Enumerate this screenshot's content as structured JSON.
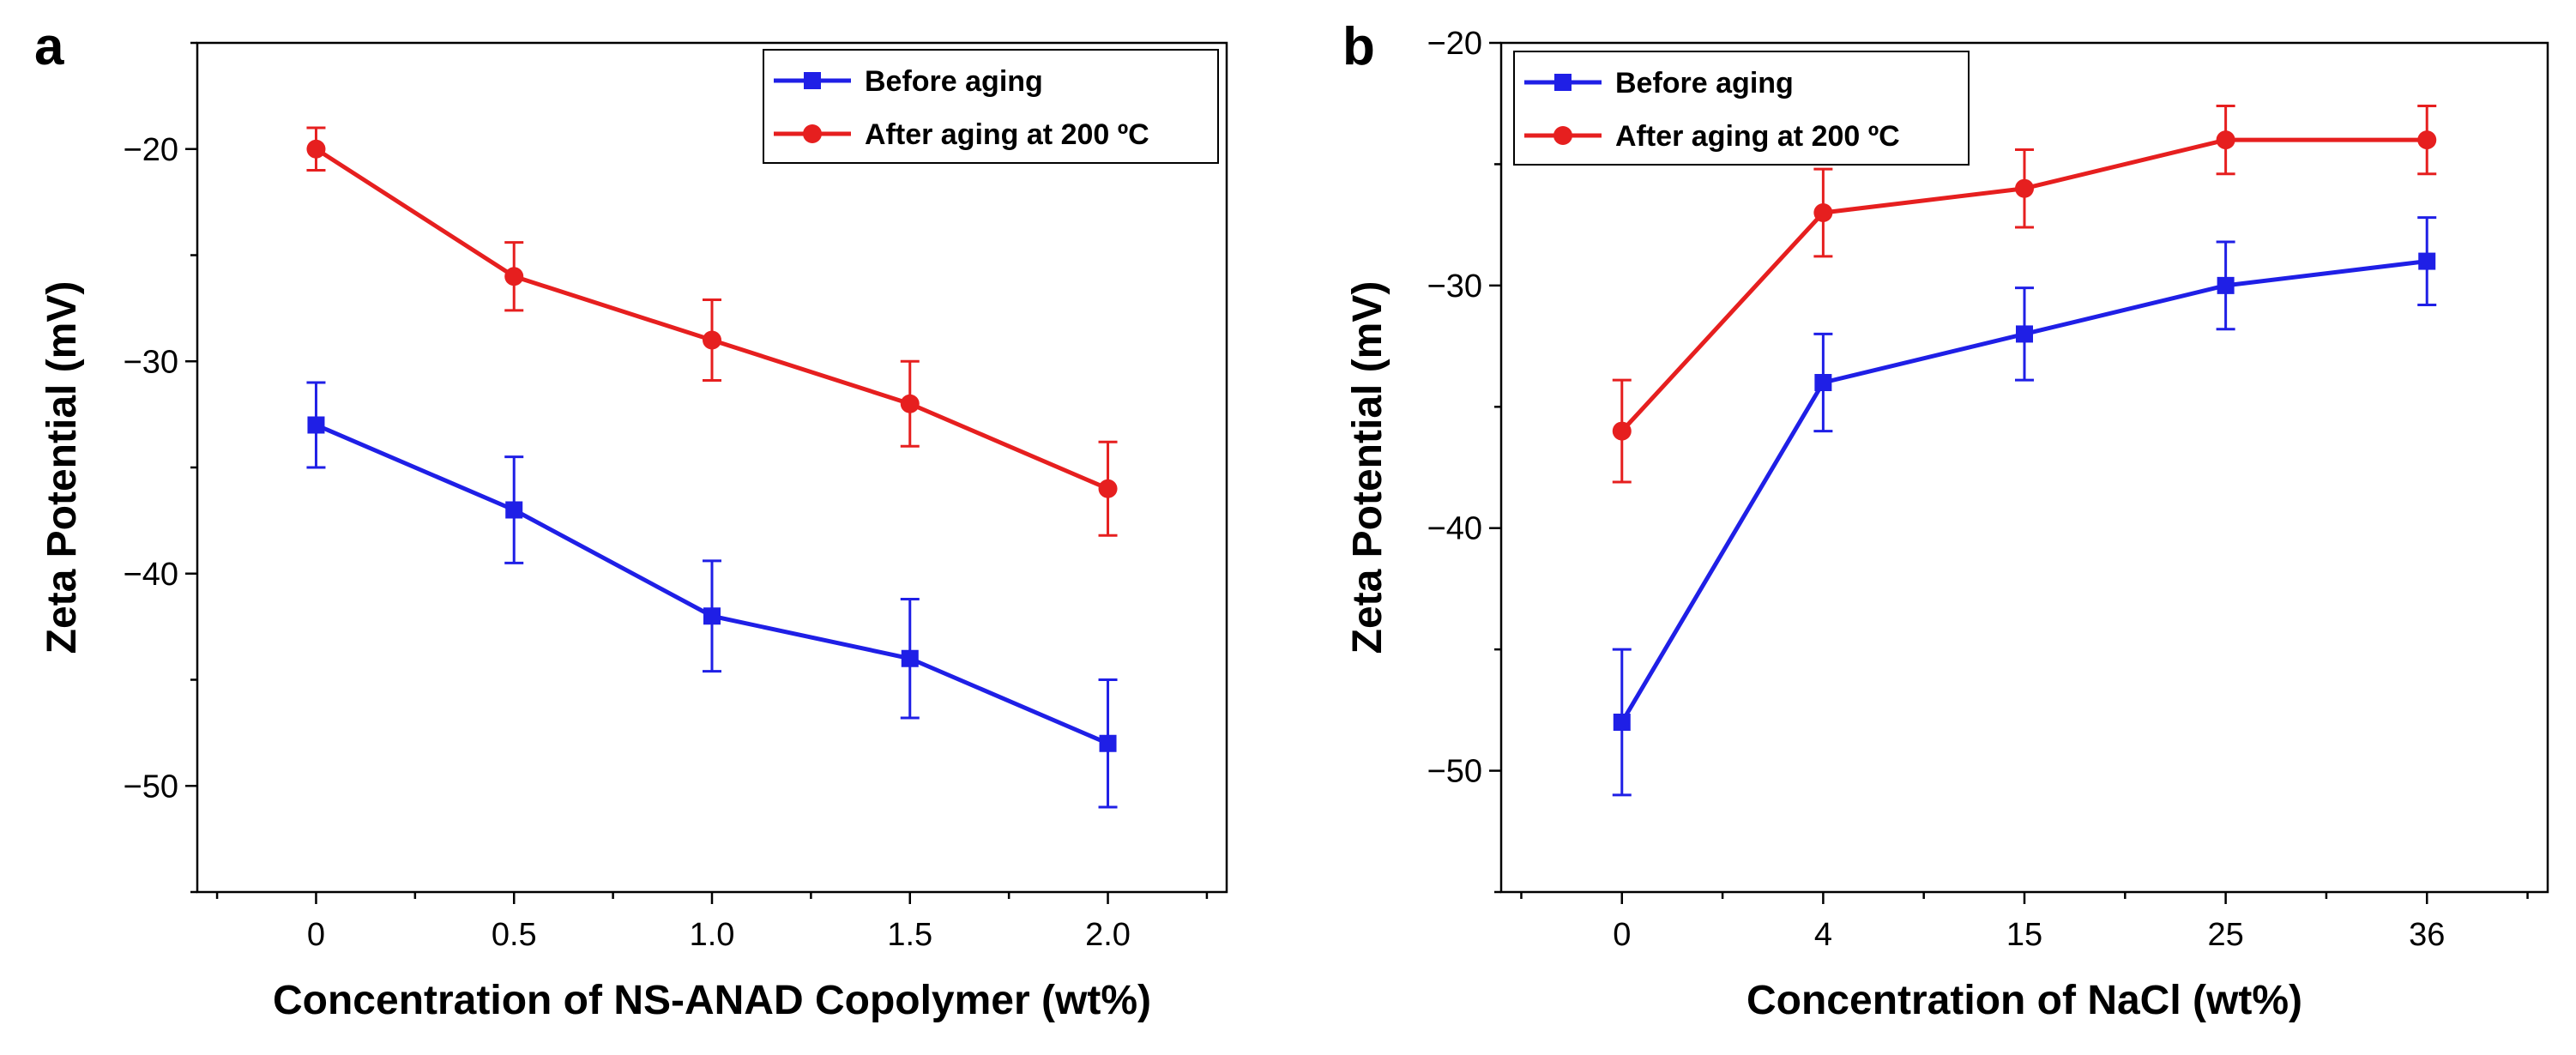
{
  "chart_data": [
    {
      "type": "line",
      "panel_label": "a",
      "xlabel": "Concentration of NS-ANAD Copolymer (wt%)",
      "ylabel": "Zeta Potential (mV)",
      "categories": [
        "0",
        "0.5",
        "1.0",
        "1.5",
        "2.0"
      ],
      "x": [
        0,
        0.5,
        1.0,
        1.5,
        2.0
      ],
      "xlim": [
        -0.3,
        2.3
      ],
      "ylim": [
        -55,
        -15
      ],
      "yticks": [
        -50,
        -40,
        -30,
        -20
      ],
      "ytick_labels": [
        "−50",
        "−40",
        "−30",
        "−20"
      ],
      "legend_position": "top-right",
      "series": [
        {
          "name": "Before aging",
          "color": "#1f1fe6",
          "marker": "square",
          "values": [
            -33,
            -37,
            -42,
            -44,
            -48
          ],
          "errors": [
            2,
            2.5,
            2.6,
            2.8,
            3
          ]
        },
        {
          "name": "After aging at 200 ºC",
          "color": "#e61f1f",
          "marker": "circle",
          "values": [
            -20,
            -26,
            -29,
            -32,
            -36
          ],
          "errors": [
            1,
            1.6,
            1.9,
            2,
            2.2
          ]
        }
      ]
    },
    {
      "type": "line",
      "panel_label": "b",
      "xlabel": "Concentration of NaCl (wt%)",
      "ylabel": "Zeta Potential (mV)",
      "categories": [
        "0",
        "4",
        "15",
        "25",
        "36"
      ],
      "x": [
        0,
        1,
        2,
        3,
        4
      ],
      "xlim": [
        -0.6,
        4.6
      ],
      "ylim": [
        -55,
        -20
      ],
      "yticks": [
        -50,
        -40,
        -30,
        -20
      ],
      "ytick_labels": [
        "−50",
        "−40",
        "−30",
        "−20"
      ],
      "legend_position": "top-left",
      "series": [
        {
          "name": "Before aging",
          "color": "#1f1fe6",
          "marker": "square",
          "values": [
            -48,
            -34,
            -32,
            -30,
            -29
          ],
          "errors": [
            3,
            2,
            1.9,
            1.8,
            1.8
          ]
        },
        {
          "name": "After aging at 200 ºC",
          "color": "#e61f1f",
          "marker": "circle",
          "values": [
            -36,
            -27,
            -26,
            -24,
            -24
          ],
          "errors": [
            2.1,
            1.8,
            1.6,
            1.4,
            1.4
          ]
        }
      ]
    }
  ]
}
